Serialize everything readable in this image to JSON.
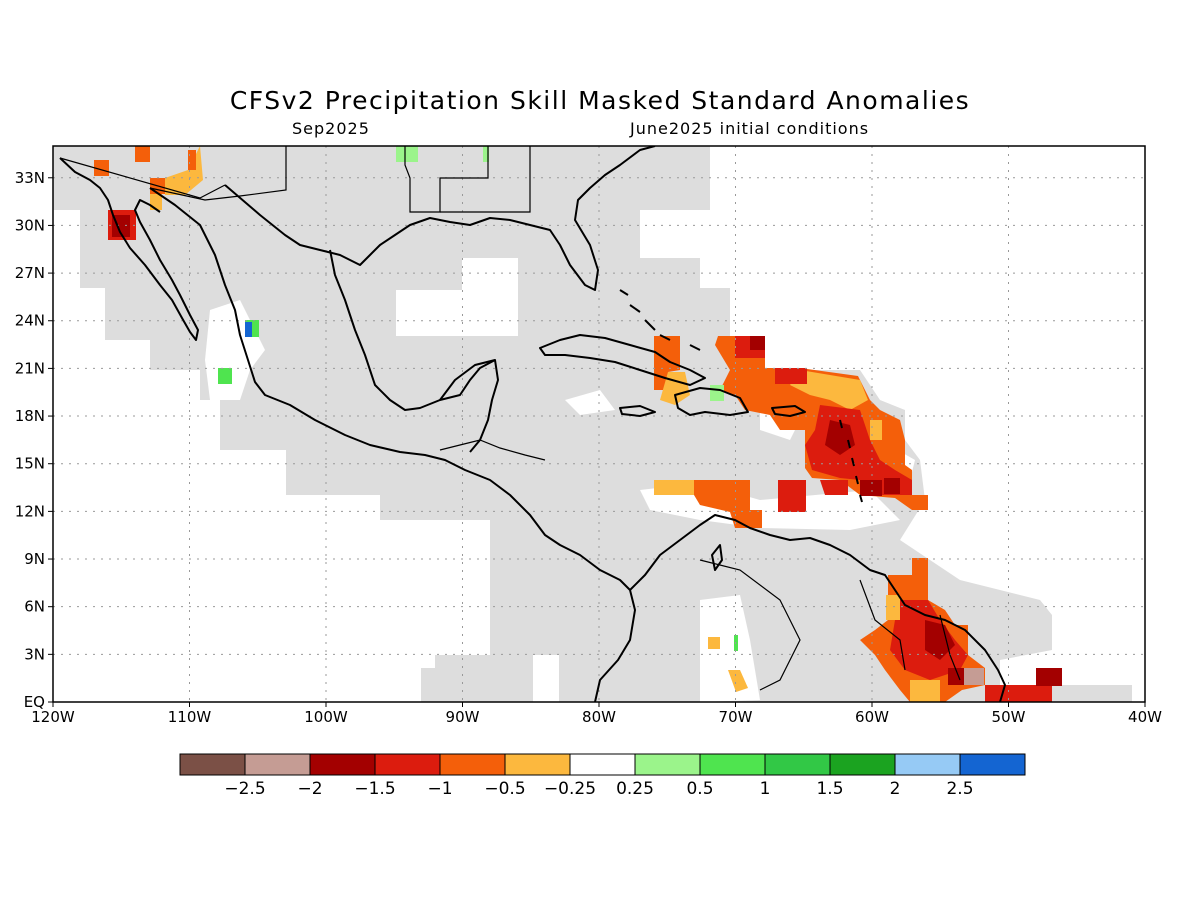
{
  "title": "CFSv2 Precipitation Skill Masked Standard Anomalies",
  "subtitle_left": "Sep2025",
  "subtitle_right": "June2025 initial conditions",
  "axes": {
    "lon_ticks": [
      "120W",
      "110W",
      "100W",
      "90W",
      "80W",
      "70W",
      "60W",
      "50W",
      "40W"
    ],
    "lat_ticks": [
      "EQ",
      "3N",
      "6N",
      "9N",
      "12N",
      "15N",
      "18N",
      "21N",
      "24N",
      "27N",
      "30N",
      "33N"
    ],
    "lon_range": [
      -120,
      -40
    ],
    "lat_range": [
      0,
      35
    ],
    "grid": "dotted"
  },
  "colorbar": {
    "colors": [
      "#7b5046",
      "#c59c94",
      "#a30000",
      "#dc1c0e",
      "#f45f0a",
      "#fcb83e",
      "#ffffff",
      "#9bf48b",
      "#4fe44f",
      "#32c846",
      "#1ba320",
      "#96caf5",
      "#1465d2"
    ],
    "labels": [
      "−2.5",
      "−2",
      "−1.5",
      "−1",
      "−0.5",
      "−0.25",
      "0.25",
      "0.5",
      "1",
      "1.5",
      "2",
      "2.5"
    ]
  },
  "colors": {
    "mask": "#dddddd",
    "coast": "#000000"
  }
}
